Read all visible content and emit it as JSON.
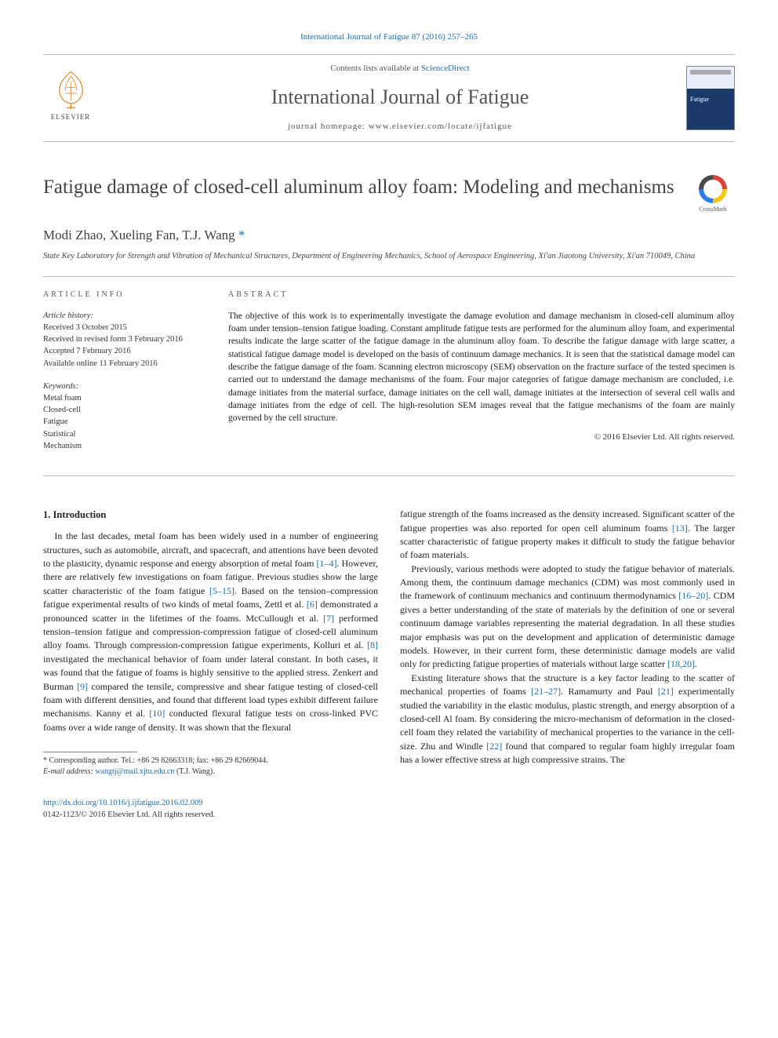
{
  "colors": {
    "link": "#1b6ca8",
    "text": "#222222",
    "muted": "#555555",
    "rule": "#bbbbbb"
  },
  "header": {
    "citation": "International Journal of Fatigue 87 (2016) 257–265",
    "contents_prefix": "Contents lists available at ",
    "contents_link": "ScienceDirect",
    "journal": "International Journal of Fatigue",
    "homepage_label": "journal homepage: ",
    "homepage_url": "www.elsevier.com/locate/ijfatigue",
    "publisher": "ELSEVIER"
  },
  "article": {
    "title": "Fatigue damage of closed-cell aluminum alloy foam: Modeling and mechanisms",
    "crossmark": "CrossMark",
    "authors_html": "Modi Zhao, Xueling Fan, T.J. Wang",
    "corr_mark": " *",
    "affiliation": "State Key Laboratory for Strength and Vibration of Mechanical Structures, Department of Engineering Mechanics, School of Aerospace Engineering, Xi'an Jiaotong University, Xi'an 710049, China"
  },
  "info": {
    "heading": "article info",
    "history_label": "Article history:",
    "history": [
      "Received 3 October 2015",
      "Received in revised form 3 February 2016",
      "Accepted 7 February 2016",
      "Available online 11 February 2016"
    ],
    "keywords_label": "Keywords:",
    "keywords": [
      "Metal foam",
      "Closed-cell",
      "Fatigue",
      "Statistical",
      "Mechanism"
    ]
  },
  "abstract": {
    "heading": "abstract",
    "text": "The objective of this work is to experimentally investigate the damage evolution and damage mechanism in closed-cell aluminum alloy foam under tension–tension fatigue loading. Constant amplitude fatigue tests are performed for the aluminum alloy foam, and experimental results indicate the large scatter of the fatigue damage in the aluminum alloy foam. To describe the fatigue damage with large scatter, a statistical fatigue damage model is developed on the basis of continuum damage mechanics. It is seen that the statistical damage model can describe the fatigue damage of the foam. Scanning electron microscopy (SEM) observation on the fracture surface of the tested specimen is carried out to understand the damage mechanisms of the foam. Four major categories of fatigue damage mechanism are concluded, i.e. damage initiates from the material surface, damage initiates on the cell wall, damage initiates at the intersection of several cell walls and damage initiates from the edge of cell. The high-resolution SEM images reveal that the fatigue mechanisms of the foam are mainly governed by the cell structure.",
    "copyright": "© 2016 Elsevier Ltd. All rights reserved."
  },
  "body": {
    "section_number": "1.",
    "section_title": "Introduction",
    "left": "In the last decades, metal foam has been widely used in a number of engineering structures, such as automobile, aircraft, and spacecraft, and attentions have been devoted to the plasticity, dynamic response and energy absorption of metal foam [1–4]. However, there are relatively few investigations on foam fatigue. Previous studies show the large scatter characteristic of the foam fatigue [5–15]. Based on the tension–compression fatigue experimental results of two kinds of metal foams, Zettl et al. [6] demonstrated a pronounced scatter in the lifetimes of the foams. McCullough et al. [7] performed tension–tension fatigue and compression-compression fatigue of closed-cell aluminum alloy foams. Through compression-compression fatigue experiments, Kolluri et al. [8] investigated the mechanical behavior of foam under lateral constant. In both cases, it was found that the fatigue of foams is highly sensitive to the applied stress. Zenkert and Burman [9] compared the tensile, compressive and shear fatigue testing of closed-cell foam with different densities, and found that different load types exhibit different failure mechanisms. Kanny et al. [10] conducted flexural fatigue tests on cross-linked PVC foams over a wide range of density. It was shown that the flexural",
    "right_p1": "fatigue strength of the foams increased as the density increased. Significant scatter of the fatigue properties was also reported for open cell aluminum foams [13]. The larger scatter characteristic of fatigue property makes it difficult to study the fatigue behavior of foam materials.",
    "right_p2": "Previously, various methods were adopted to study the fatigue behavior of materials. Among them, the continuum damage mechanics (CDM) was most commonly used in the framework of continuum mechanics and continuum thermodynamics [16–20]. CDM gives a better understanding of the state of materials by the definition of one or several continuum damage variables representing the material degradation. In all these studies major emphasis was put on the development and application of deterministic damage models. However, in their current form, these deterministic damage models are valid only for predicting fatigue properties of materials without large scatter [18,20].",
    "right_p3": "Existing literature shows that the structure is a key factor leading to the scatter of mechanical properties of foams [21–27]. Ramamurty and Paul [21] experimentally studied the variability in the elastic modulus, plastic strength, and energy absorption of a closed-cell Al foam. By considering the micro-mechanism of deformation in the closed-cell foam they related the variability of mechanical properties to the variance in the cell-size. Zhu and Windle [22] found that compared to regular foam highly irregular foam has a lower effective stress at high compressive strains. The"
  },
  "footnote": {
    "corr": "* Corresponding author. Tel.: +86 29 82663318; fax: +86 29 82669044.",
    "email_label": "E-mail address:",
    "email": "wangtj@mail.xjtu.edu.cn",
    "email_who": "(T.J. Wang)."
  },
  "doi": {
    "url": "http://dx.doi.org/10.1016/j.ijfatigue.2016.02.009",
    "line2": "0142-1123/© 2016 Elsevier Ltd. All rights reserved."
  }
}
